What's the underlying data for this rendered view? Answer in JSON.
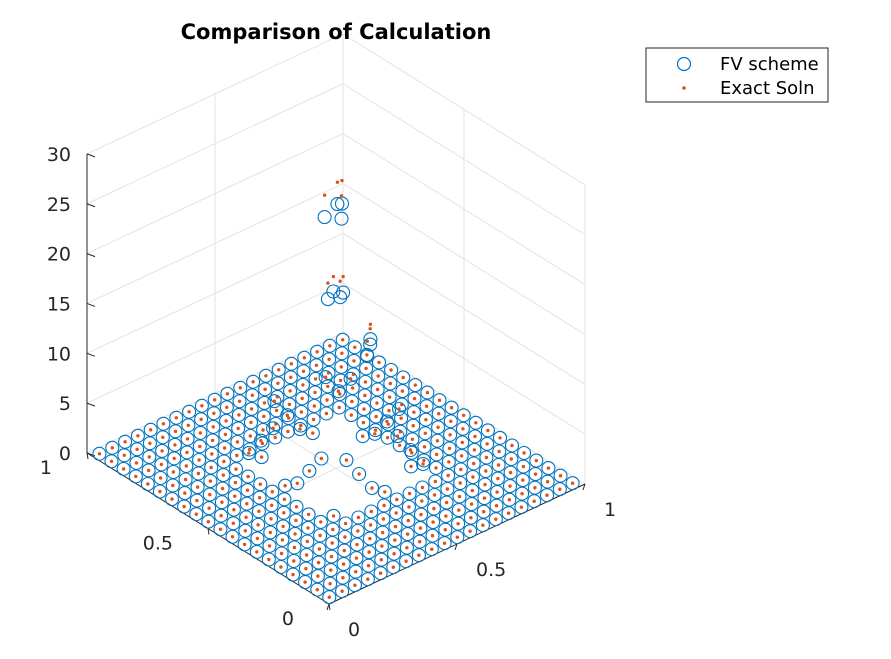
{
  "chart_data": {
    "type": "scatter",
    "projection": "3d",
    "title": "Comparison of Calculation",
    "xlabel": "",
    "ylabel": "",
    "zlabel": "",
    "xlim": [
      0,
      1
    ],
    "ylim": [
      0,
      1
    ],
    "zlim": [
      0,
      30
    ],
    "x_ticks": [
      0,
      0.5,
      1
    ],
    "y_ticks": [
      0,
      0.5,
      1
    ],
    "z_ticks": [
      0,
      5,
      10,
      15,
      20,
      25,
      30
    ],
    "x_tick_labels": [
      "0",
      "0.5",
      "1"
    ],
    "y_tick_labels": [
      "0",
      "0.5",
      "1"
    ],
    "z_tick_labels": [
      "0",
      "5",
      "10",
      "15",
      "20",
      "25",
      "30"
    ],
    "grid": true,
    "legend_position": "top-right",
    "grid_size": 20,
    "inner_hole": {
      "x_range": [
        0.35,
        0.65
      ],
      "y_range": [
        0.35,
        0.65
      ],
      "rim_values": [
        0,
        1,
        3,
        5
      ]
    },
    "elevated_points": {
      "fv": [
        {
          "x": 0.55,
          "y": 0.53,
          "z": 24
        },
        {
          "x": 0.58,
          "y": 0.56,
          "z": 24.7
        },
        {
          "x": 0.6,
          "y": 0.6,
          "z": 23.8
        },
        {
          "x": 0.55,
          "y": 0.6,
          "z": 23.1
        },
        {
          "x": 0.52,
          "y": 0.38,
          "z": 14
        },
        {
          "x": 0.54,
          "y": 0.4,
          "z": 14
        },
        {
          "x": 0.49,
          "y": 0.36,
          "z": 13.5
        },
        {
          "x": 0.63,
          "y": 0.62,
          "z": 13.8
        },
        {
          "x": 0.66,
          "y": 0.64,
          "z": 13.6
        },
        {
          "x": 0.66,
          "y": 0.68,
          "z": 13.1
        },
        {
          "x": 0.61,
          "y": 0.65,
          "z": 13.4
        }
      ],
      "exact": [
        {
          "x": 0.55,
          "y": 0.53,
          "z": 26.3
        },
        {
          "x": 0.58,
          "y": 0.56,
          "z": 27
        },
        {
          "x": 0.6,
          "y": 0.6,
          "z": 26
        },
        {
          "x": 0.55,
          "y": 0.6,
          "z": 25.3
        },
        {
          "x": 0.52,
          "y": 0.38,
          "z": 15.6
        },
        {
          "x": 0.54,
          "y": 0.4,
          "z": 15.5
        },
        {
          "x": 0.49,
          "y": 0.36,
          "z": 15
        },
        {
          "x": 0.63,
          "y": 0.62,
          "z": 15.4
        },
        {
          "x": 0.66,
          "y": 0.64,
          "z": 15.2
        },
        {
          "x": 0.66,
          "y": 0.68,
          "z": 14.6
        },
        {
          "x": 0.61,
          "y": 0.65,
          "z": 15
        }
      ]
    },
    "series": [
      {
        "name": "FV scheme",
        "marker": "circle-open",
        "color": "#0072BD"
      },
      {
        "name": "Exact Soln",
        "marker": "dot",
        "color": "#D95319"
      }
    ]
  }
}
